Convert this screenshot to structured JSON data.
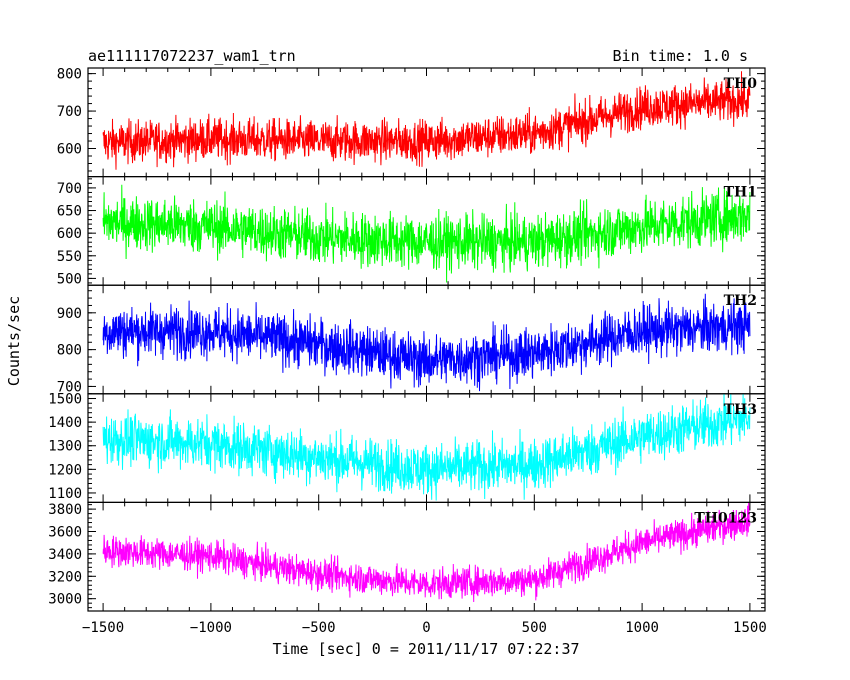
{
  "header": {
    "left_title": "ae111117072237_wam1_trn",
    "right_title": "Bin time: 1.0 s"
  },
  "chart_data": {
    "type": "line",
    "x": {
      "label": "Time [sec] 0 = 2011/11/17 07:22:37",
      "range": [
        -1570,
        1570
      ],
      "ticks": [
        -1500,
        -1000,
        -500,
        0,
        500,
        1000,
        1500
      ],
      "tick_labels": [
        "−1500",
        "−1000",
        "−500",
        "0",
        "500",
        "1000",
        "1500"
      ]
    },
    "ylabel": "Counts/sec",
    "panels": [
      {
        "name": "TH0",
        "color": "#ff0000",
        "ylim": [
          525,
          815
        ],
        "yticks": [
          600,
          700,
          800
        ],
        "trend": {
          "x": [
            -1500,
            -1000,
            -500,
            0,
            500,
            1000,
            1500
          ],
          "y": [
            615,
            625,
            620,
            620,
            640,
            710,
            730
          ]
        },
        "noise": 28
      },
      {
        "name": "TH1",
        "color": "#00ff00",
        "ylim": [
          485,
          725
        ],
        "yticks": [
          500,
          550,
          600,
          650,
          700
        ],
        "trend": {
          "x": [
            -1500,
            -1000,
            -500,
            0,
            500,
            1000,
            1500
          ],
          "y": [
            625,
            615,
            590,
            580,
            580,
            615,
            640
          ]
        },
        "noise": 30
      },
      {
        "name": "TH2",
        "color": "#0000ff",
        "ylim": [
          680,
          975
        ],
        "yticks": [
          700,
          800,
          900
        ],
        "trend": {
          "x": [
            -1500,
            -1000,
            -500,
            0,
            500,
            1000,
            1500
          ],
          "y": [
            850,
            850,
            815,
            770,
            790,
            850,
            865
          ]
        },
        "noise": 35
      },
      {
        "name": "TH3",
        "color": "#00ffff",
        "ylim": [
          1060,
          1520
        ],
        "yticks": [
          1100,
          1200,
          1300,
          1400,
          1500
        ],
        "trend": {
          "x": [
            -1500,
            -1000,
            -500,
            0,
            500,
            1000,
            1500
          ],
          "y": [
            1330,
            1310,
            1250,
            1200,
            1220,
            1340,
            1420
          ]
        },
        "noise": 55
      },
      {
        "name": "TH0123",
        "color": "#ff00ff",
        "ylim": [
          2890,
          3860
        ],
        "yticks": [
          3000,
          3200,
          3400,
          3600,
          3800
        ],
        "trend": {
          "x": [
            -1500,
            -1000,
            -500,
            0,
            500,
            1000,
            1500
          ],
          "y": [
            3430,
            3380,
            3220,
            3130,
            3170,
            3500,
            3700
          ]
        },
        "noise": 70
      }
    ]
  }
}
